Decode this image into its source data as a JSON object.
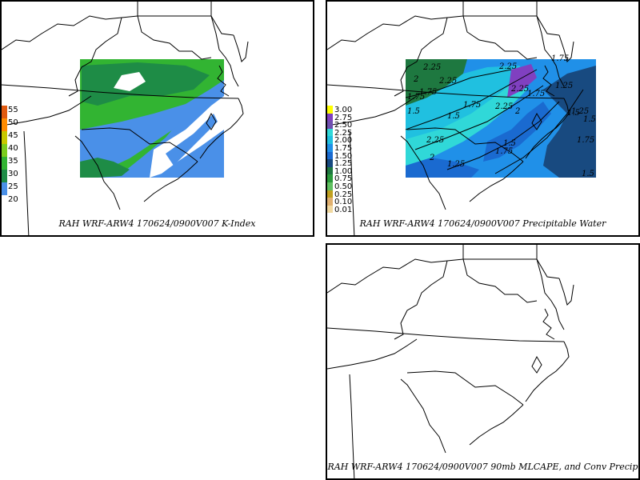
{
  "panels": {
    "k_index": {
      "caption": "RAH WRF-ARW4 170624/0900V007  K-Index",
      "legend": {
        "labels": [
          "55",
          "50",
          "45",
          "40",
          "35",
          "30",
          "25",
          "20"
        ],
        "colors": [
          "#e05a10",
          "#ff8c00",
          "#c8c800",
          "#7ccd1e",
          "#32b432",
          "#1e8c46",
          "#4a90e8",
          "#ffffff"
        ]
      }
    },
    "precipitable_water": {
      "caption": "RAH WRF-ARW4 170624/0900V007  Precipitable Water",
      "legend": {
        "labels": [
          "3.00",
          "2.75",
          "2.50",
          "2.25",
          "2.00",
          "1.75",
          "1.50",
          "1.25",
          "1.00",
          "0.75",
          "0.50",
          "0.25",
          "0.10",
          "0.01"
        ],
        "colors": [
          "#ffff00",
          "#8040c0",
          "#7050b0",
          "#30d8d8",
          "#20c0e0",
          "#2090e8",
          "#1a6ad0",
          "#184a80",
          "#1e7840",
          "#2a9a3a",
          "#60c060",
          "#c0a020",
          "#e0b070",
          "#f0d8a0"
        ]
      },
      "contour_labels": [
        "1.5",
        "1.75",
        "2",
        "2.25",
        "2.25",
        "2.25",
        "2.25",
        "2.25",
        "2",
        "1.75",
        "1.75",
        "1.5",
        "1.5",
        "1.75",
        "1.5",
        "1.25",
        "1.5",
        "1.75",
        "2.25",
        "1.5",
        "1.75",
        "1.75",
        "1.25",
        "2",
        "1.25"
      ]
    },
    "mlcape": {
      "caption": "RAH WRF-ARW4 170624/0900V007  90mb MLCAPE, and Conv Precip"
    }
  }
}
